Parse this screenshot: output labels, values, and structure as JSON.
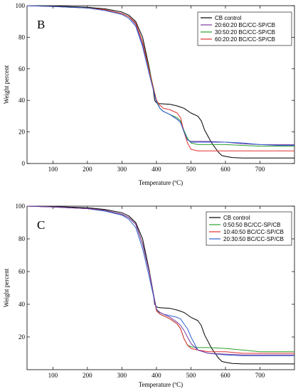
{
  "chart_data": [
    {
      "type": "line",
      "panel_label": "B",
      "xlabel": "Temperature (ºC)",
      "ylabel": "Weight percent",
      "xlim": [
        25,
        800
      ],
      "ylim": [
        0,
        100
      ],
      "x_ticks": [
        100,
        200,
        300,
        400,
        500,
        600,
        700
      ],
      "y_ticks": [
        0,
        20,
        40,
        60,
        80,
        100
      ],
      "grid": false,
      "legend_position": "top-right",
      "series": [
        {
          "name": "CB control",
          "color": "#000000",
          "x": [
            25,
            100,
            200,
            250,
            300,
            320,
            340,
            360,
            380,
            390,
            395,
            400,
            405,
            420,
            440,
            460,
            480,
            500,
            520,
            530,
            540,
            560,
            580,
            590,
            600,
            620,
            650,
            700,
            750,
            800
          ],
          "y": [
            100,
            99.8,
            99,
            98,
            96,
            94,
            90,
            80,
            60,
            48,
            40,
            38.5,
            38,
            37.8,
            37.5,
            36.5,
            35,
            32,
            30,
            27,
            21,
            13,
            7,
            5,
            4.5,
            3.8,
            3.5,
            3.5,
            3.5,
            3.5
          ]
        },
        {
          "name": "20:60:20 BC/CC-SP/CB",
          "color": "#7a3aa0",
          "x": [
            25,
            100,
            200,
            250,
            300,
            320,
            340,
            360,
            380,
            400,
            410,
            420,
            440,
            460,
            470,
            480,
            490,
            500,
            520,
            550,
            600,
            650,
            700,
            750,
            800
          ],
          "y": [
            100,
            99.5,
            98.5,
            97.5,
            95,
            93,
            88,
            75,
            58,
            40,
            35,
            33,
            31,
            28,
            26,
            20,
            15,
            14,
            14,
            14,
            13.5,
            12.5,
            12,
            12,
            12
          ]
        },
        {
          "name": "30:50:20 BC/CC-SP/CB",
          "color": "#2ca02c",
          "x": [
            25,
            100,
            200,
            250,
            300,
            320,
            340,
            360,
            380,
            400,
            410,
            420,
            440,
            460,
            470,
            480,
            490,
            500,
            520,
            550,
            600,
            650,
            700,
            750,
            800
          ],
          "y": [
            100,
            99.5,
            98.5,
            97.5,
            95,
            93,
            89,
            77,
            59,
            40,
            35,
            33,
            31,
            29,
            27,
            21,
            16,
            13,
            12,
            12,
            12,
            11.5,
            11,
            11,
            11
          ]
        },
        {
          "name": "60:20:20 BC/CC-SP/CB",
          "color": "#e03030",
          "x": [
            25,
            100,
            200,
            250,
            300,
            320,
            340,
            360,
            380,
            400,
            410,
            420,
            440,
            460,
            470,
            480,
            490,
            500,
            520,
            550,
            600,
            650,
            700,
            750,
            800
          ],
          "y": [
            100,
            99.5,
            98.5,
            97.5,
            95,
            93,
            89,
            77,
            58,
            40,
            37,
            35,
            34,
            32,
            29,
            20,
            13,
            9,
            8,
            8,
            8,
            8,
            8,
            8,
            8
          ]
        },
        {
          "name": "",
          "color": "#3060d0",
          "x": [
            25,
            100,
            200,
            250,
            300,
            320,
            340,
            360,
            380,
            400,
            410,
            420,
            440,
            460,
            470,
            480,
            490,
            500,
            520,
            550,
            600,
            650,
            700,
            750,
            800
          ],
          "y": [
            100,
            99.5,
            98.5,
            97,
            94.5,
            92,
            87,
            74,
            56,
            39,
            35,
            33,
            31,
            28,
            26,
            20,
            15,
            13.5,
            13.5,
            13.5,
            13.5,
            13,
            12,
            11.5,
            11.5
          ]
        }
      ]
    },
    {
      "type": "line",
      "panel_label": "C",
      "xlabel": "Temperature (ºC)",
      "ylabel": "Weight percent",
      "xlim": [
        25,
        800
      ],
      "ylim": [
        0,
        100
      ],
      "x_ticks": [
        100,
        200,
        300,
        400,
        500,
        600,
        700
      ],
      "y_ticks": [
        20,
        40,
        60,
        80,
        100
      ],
      "grid": false,
      "legend_position": "top-right",
      "series": [
        {
          "name": "CB control",
          "color": "#000000",
          "x": [
            25,
            100,
            200,
            250,
            300,
            320,
            340,
            360,
            380,
            390,
            395,
            400,
            405,
            420,
            440,
            460,
            480,
            500,
            520,
            530,
            540,
            560,
            580,
            590,
            600,
            620,
            650,
            700,
            750,
            800
          ],
          "y": [
            100,
            99.8,
            99,
            98,
            96,
            94,
            90,
            80,
            60,
            48,
            40,
            38.5,
            38,
            37.8,
            37.5,
            36.5,
            35,
            32,
            30,
            27,
            21,
            13,
            7,
            5,
            4.5,
            3.8,
            3.5,
            3.5,
            3.5,
            3.5
          ]
        },
        {
          "name": "0:50:50 BC/CC-SP/CB",
          "color": "#2ca02c",
          "x": [
            25,
            100,
            200,
            250,
            300,
            320,
            340,
            360,
            380,
            400,
            410,
            420,
            440,
            460,
            470,
            480,
            490,
            500,
            520,
            550,
            600,
            650,
            700,
            750,
            800
          ],
          "y": [
            100,
            99.5,
            98.5,
            97.5,
            95,
            93,
            89,
            77,
            59,
            37,
            34,
            33,
            31,
            28,
            25,
            19,
            15,
            14,
            13.5,
            13.5,
            13,
            12,
            11,
            11,
            11
          ]
        },
        {
          "name": "10:40:50 BC/CC-SP/CB",
          "color": "#e03030",
          "x": [
            25,
            100,
            200,
            250,
            300,
            320,
            340,
            360,
            380,
            400,
            410,
            420,
            440,
            460,
            470,
            480,
            490,
            500,
            520,
            550,
            600,
            650,
            700,
            750,
            800
          ],
          "y": [
            100,
            99.5,
            98.5,
            97.5,
            95,
            93,
            89,
            77,
            59,
            36,
            34,
            33,
            31,
            28,
            25,
            19,
            15,
            13,
            12,
            11,
            11,
            10,
            10,
            10,
            10
          ]
        },
        {
          "name": "20:30:50 BC/CC-SP/CB",
          "color": "#3060d0",
          "x": [
            25,
            100,
            200,
            250,
            300,
            320,
            340,
            360,
            380,
            400,
            410,
            420,
            440,
            460,
            470,
            480,
            490,
            500,
            520,
            550,
            600,
            650,
            700,
            750,
            800
          ],
          "y": [
            100,
            99.5,
            98.5,
            97,
            94.5,
            92,
            87,
            74,
            56,
            37,
            35,
            34,
            33,
            32,
            31,
            28,
            25,
            20,
            12,
            10,
            9,
            8.5,
            8.5,
            8.5,
            8.5
          ]
        },
        {
          "name": "",
          "color": "#7a3aa0",
          "x": [
            25,
            100,
            200,
            250,
            300,
            320,
            340,
            360,
            380,
            400,
            410,
            420,
            440,
            460,
            470,
            480,
            490,
            500,
            520,
            550,
            600,
            650,
            700,
            750,
            800
          ],
          "y": [
            100,
            99.5,
            98.5,
            97.5,
            95,
            93,
            89,
            77,
            59,
            37,
            35,
            34,
            32,
            29,
            27,
            24,
            20,
            16,
            12,
            10,
            9.5,
            9,
            9,
            9,
            9
          ]
        }
      ]
    }
  ]
}
